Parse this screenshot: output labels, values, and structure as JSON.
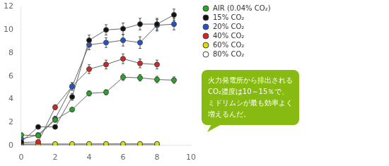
{
  "chart_data": {
    "type": "line",
    "series": [
      {
        "name": "AIR (0.04% CO₂)",
        "color": "#22aa22",
        "marker": "circle",
        "x": [
          0,
          1,
          2,
          3,
          4,
          5,
          6,
          7,
          8,
          9
        ],
        "values": [
          0.9,
          0.85,
          2.2,
          3.1,
          4.5,
          4.6,
          5.9,
          5.85,
          5.7,
          5.65
        ],
        "yerr": [
          0.12,
          0.12,
          0.18,
          0.18,
          0.22,
          0.22,
          0.28,
          0.28,
          0.28,
          0.28
        ]
      },
      {
        "name": "15% CO₂",
        "color": "#111111",
        "marker": "circle",
        "x": [
          0,
          1,
          2,
          3,
          4,
          5,
          6,
          7,
          8,
          9
        ],
        "values": [
          0.3,
          1.6,
          1.6,
          4.2,
          9.1,
          10.0,
          10.1,
          10.5,
          10.5,
          11.3
        ],
        "yerr": [
          0.05,
          0.15,
          0.15,
          0.3,
          0.45,
          0.45,
          0.5,
          0.5,
          0.5,
          0.5
        ]
      },
      {
        "name": "20% CO₂",
        "color": "#2255cc",
        "marker": "circle",
        "x": [
          0,
          1,
          2,
          3,
          4,
          5,
          6,
          7,
          8,
          9
        ],
        "values": [
          0.55,
          0.9,
          2.3,
          5.1,
          8.7,
          8.9,
          9.1,
          8.9,
          10.4,
          10.5
        ],
        "yerr": [
          0.05,
          0.1,
          0.22,
          0.32,
          0.42,
          0.42,
          0.5,
          0.5,
          0.5,
          0.5
        ]
      },
      {
        "name": "40% CO₂",
        "color": "#dd2222",
        "marker": "circle",
        "x": [
          0,
          1,
          2,
          3,
          4,
          5,
          6,
          7,
          8
        ],
        "values": [
          0.25,
          0.3,
          3.3,
          5.1,
          6.6,
          7.0,
          7.5,
          7.1,
          7.0
        ],
        "yerr": [
          0.05,
          0.05,
          0.22,
          0.32,
          0.38,
          0.38,
          0.42,
          0.38,
          0.38
        ]
      },
      {
        "name": "60% CO₂",
        "color": "#dddd00",
        "marker": "circle",
        "x": [
          0,
          1,
          2,
          3,
          4,
          5,
          6,
          7,
          8
        ],
        "values": [
          0.12,
          0.12,
          0.12,
          0.12,
          0.13,
          0.13,
          0.13,
          0.13,
          0.13
        ],
        "yerr": [
          0.02,
          0.02,
          0.02,
          0.02,
          0.02,
          0.02,
          0.02,
          0.02,
          0.02
        ]
      },
      {
        "name": "80% CO₂",
        "color": "#ffffff",
        "marker": "circle",
        "x": [
          0,
          1,
          2,
          3,
          4,
          5,
          6,
          7,
          8
        ],
        "values": [
          0.05,
          0.05,
          0.05,
          0.05,
          0.05,
          0.05,
          0.05,
          0.05,
          0.05
        ],
        "yerr": [
          0.01,
          0.01,
          0.01,
          0.01,
          0.01,
          0.01,
          0.01,
          0.01,
          0.01
        ]
      }
    ],
    "xlim": [
      0,
      10
    ],
    "xticks": [
      0,
      2,
      4,
      6,
      8,
      10
    ],
    "ylim": [
      0,
      12
    ],
    "yticks": [
      0,
      2,
      4,
      6,
      8,
      10,
      12
    ],
    "grid": false,
    "legend": "right",
    "annotations": [
      {
        "text": "火力発電所から排出される\nCO₂濃度は10～15％で、\nミドリムシが最も効率よく\n増えるんだ。",
        "color": "#88bb11"
      }
    ]
  }
}
